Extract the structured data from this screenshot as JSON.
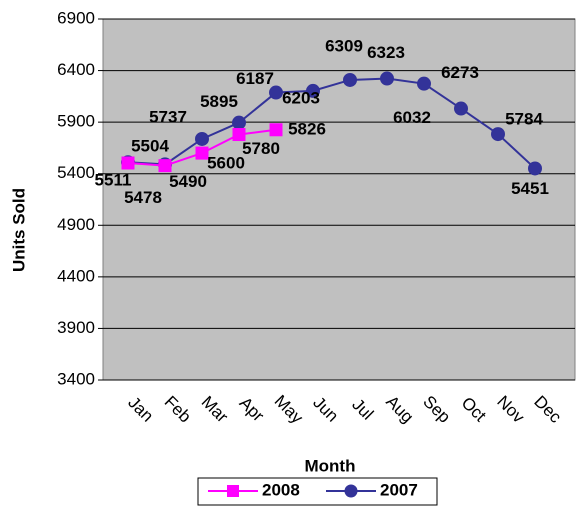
{
  "chart_data": {
    "type": "line",
    "x_label": "Month",
    "y_label": "Units Sold",
    "categories": [
      "Jan",
      "Feb",
      "Mar",
      "Apr",
      "May",
      "Jun",
      "Jul",
      "Aug",
      "Sep",
      "Oct",
      "Nov",
      "Dec"
    ],
    "series": [
      {
        "name": "2008",
        "color": "#ff00ff",
        "marker": "square",
        "values": [
          5504,
          5478,
          5600,
          5780,
          5826,
          null,
          null,
          null,
          null,
          null,
          null,
          null
        ]
      },
      {
        "name": "2007",
        "color": "#333399",
        "marker": "circle",
        "values": [
          5511,
          5490,
          5737,
          5895,
          6187,
          6203,
          6309,
          6323,
          6273,
          6032,
          5784,
          5451
        ]
      }
    ],
    "ylim": [
      3400,
      6900
    ],
    "yticks": [
      3400,
      3900,
      4400,
      4900,
      5400,
      5900,
      6400,
      6900
    ],
    "grid": true,
    "legend": "bottom"
  }
}
